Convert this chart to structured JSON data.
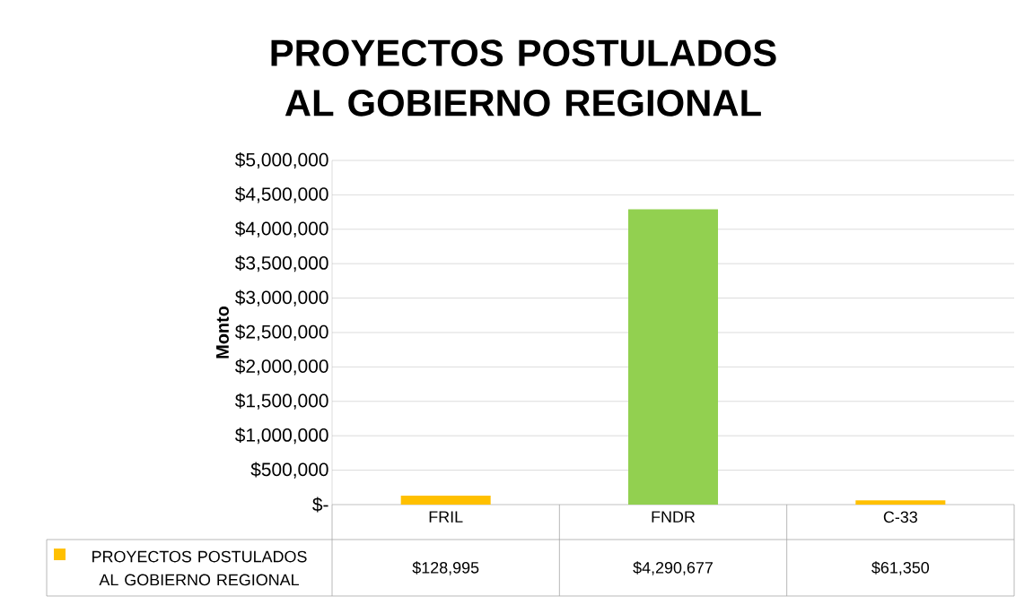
{
  "chart_data": {
    "type": "bar",
    "title": "PROYECTOS POSTULADOS AL GOBIERNO REGIONAL",
    "ylabel": "Monto",
    "categories": [
      "FRIL",
      "FNDR",
      "C-33"
    ],
    "series": [
      {
        "name": "PROYECTOS POSTULADOS AL GOBIERNO REGIONAL",
        "color": "#ffc000",
        "colors": [
          "#ffc000",
          "#92d050",
          "#ffc000"
        ],
        "values": [
          128995,
          4290677,
          61350
        ],
        "value_labels": [
          "$128,995",
          "$4,290,677",
          "$61,350"
        ]
      }
    ],
    "ylim": [
      0,
      5000000
    ],
    "yticks": [
      {
        "value": 0,
        "label": "$-"
      },
      {
        "value": 500000,
        "label": "$500,000"
      },
      {
        "value": 1000000,
        "label": "$1,000,000"
      },
      {
        "value": 1500000,
        "label": "$1,500,000"
      },
      {
        "value": 2000000,
        "label": "$2,000,000"
      },
      {
        "value": 2500000,
        "label": "$2,500,000"
      },
      {
        "value": 3000000,
        "label": "$3,000,000"
      },
      {
        "value": 3500000,
        "label": "$3,500,000"
      },
      {
        "value": 4000000,
        "label": "$4,000,000"
      },
      {
        "value": 4500000,
        "label": "$4,500,000"
      },
      {
        "value": 5000000,
        "label": "$5,000,000"
      }
    ],
    "grid": "y",
    "legend": "bottom left"
  }
}
